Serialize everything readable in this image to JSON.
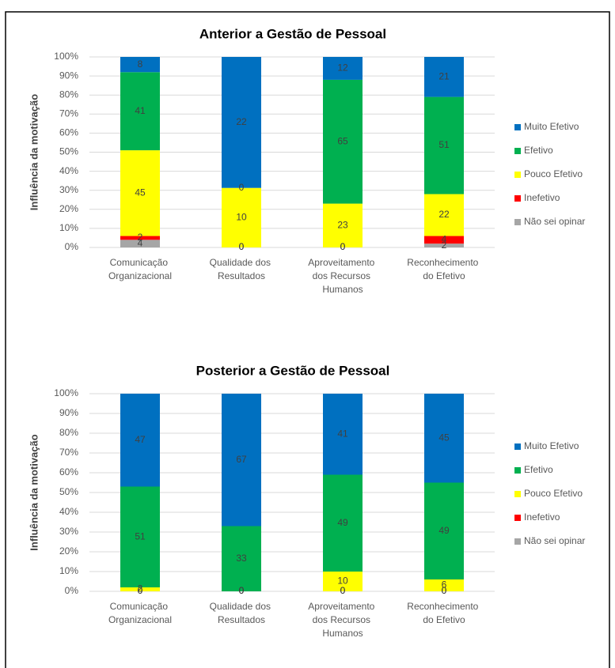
{
  "chart_data": [
    {
      "type": "bar",
      "stacked": "percent",
      "title": "Anterior a Gestão de Pessoal",
      "ylabel": "Influência da motivação",
      "categories": [
        "Comunicação Organizacional",
        "Qualidade dos Resultados",
        "Aproveitamento dos Recursos Humanos",
        "Reconhecimento do Efetivo"
      ],
      "series": [
        {
          "name": "Não sei opinar",
          "color": "#a6a6a6",
          "values": [
            4,
            0,
            0,
            2
          ]
        },
        {
          "name": "Inefetivo",
          "color": "#ff0000",
          "values": [
            2,
            0,
            0,
            4
          ]
        },
        {
          "name": "Pouco Efetivo",
          "color": "#ffff00",
          "values": [
            45,
            10,
            23,
            22
          ]
        },
        {
          "name": "Efetivo",
          "color": "#00b050",
          "values": [
            41,
            0,
            65,
            51
          ]
        },
        {
          "name": "Muito Efetivo",
          "color": "#0070c0",
          "values": [
            8,
            22,
            12,
            21
          ]
        }
      ],
      "ylim": [
        0,
        100
      ],
      "yticks": [
        {
          "value": 0,
          "label": "0%"
        },
        {
          "value": 10,
          "label": "10%"
        },
        {
          "value": 20,
          "label": "20%"
        },
        {
          "value": 30,
          "label": "30%"
        },
        {
          "value": 40,
          "label": "40%"
        },
        {
          "value": 50,
          "label": "50%"
        },
        {
          "value": 60,
          "label": "60%"
        },
        {
          "value": 70,
          "label": "70%"
        },
        {
          "value": 80,
          "label": "80%"
        },
        {
          "value": 90,
          "label": "90%"
        },
        {
          "value": 100,
          "label": "100%"
        }
      ],
      "grid": true,
      "legend": "right"
    },
    {
      "type": "bar",
      "stacked": "percent",
      "title": "Posterior a Gestão de Pessoal",
      "ylabel": "Influência da motivação",
      "categories": [
        "Comunicação Organizacional",
        "Qualidade dos Resultados",
        "Aproveitamento dos Recursos Humanos",
        "Reconhecimento do Efetivo"
      ],
      "series": [
        {
          "name": "Não sei opinar",
          "color": "#a6a6a6",
          "values": [
            0,
            0,
            0,
            0
          ]
        },
        {
          "name": "Inefetivo",
          "color": "#ff0000",
          "values": [
            0,
            0,
            0,
            0
          ]
        },
        {
          "name": "Pouco Efetivo",
          "color": "#ffff00",
          "values": [
            2,
            0,
            10,
            6
          ]
        },
        {
          "name": "Efetivo",
          "color": "#00b050",
          "values": [
            51,
            33,
            49,
            49
          ]
        },
        {
          "name": "Muito Efetivo",
          "color": "#0070c0",
          "values": [
            47,
            67,
            41,
            45
          ]
        }
      ],
      "ylim": [
        0,
        100
      ],
      "yticks": [
        {
          "value": 0,
          "label": "0%"
        },
        {
          "value": 10,
          "label": "10%"
        },
        {
          "value": 20,
          "label": "20%"
        },
        {
          "value": 30,
          "label": "30%"
        },
        {
          "value": 40,
          "label": "40%"
        },
        {
          "value": 50,
          "label": "50%"
        },
        {
          "value": 60,
          "label": "60%"
        },
        {
          "value": 70,
          "label": "70%"
        },
        {
          "value": 80,
          "label": "80%"
        },
        {
          "value": 90,
          "label": "90%"
        },
        {
          "value": 100,
          "label": "100%"
        }
      ],
      "grid": true,
      "legend": "right"
    }
  ]
}
